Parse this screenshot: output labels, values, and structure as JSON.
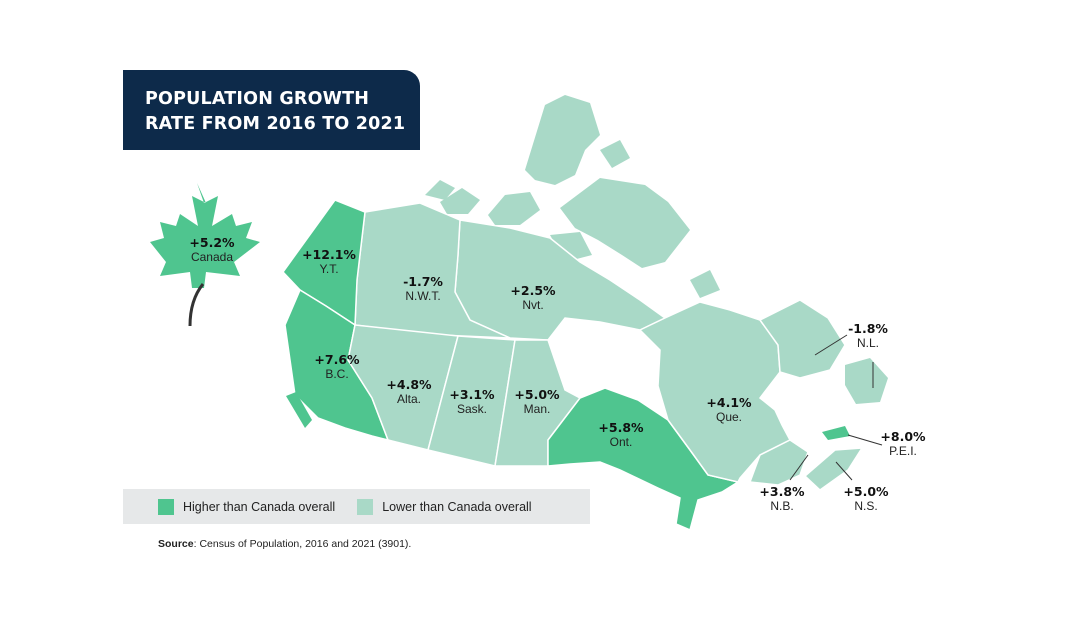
{
  "title": {
    "line1": "POPULATION GROWTH",
    "line2": "RATE FROM 2016 TO 2021"
  },
  "colors": {
    "higher": "#4fc58f",
    "lower": "#a9d9c7",
    "title_bg": "#0d2a4a",
    "legend_bg": "#e6e8e9"
  },
  "canada": {
    "value": "+5.2%",
    "name": "Canada"
  },
  "regions": {
    "yt": {
      "value": "+12.1%",
      "abbr": "Y.T.",
      "category": "higher"
    },
    "nwt": {
      "value": "-1.7%",
      "abbr": "N.W.T.",
      "category": "lower"
    },
    "nvt": {
      "value": "+2.5%",
      "abbr": "Nvt.",
      "category": "lower"
    },
    "bc": {
      "value": "+7.6%",
      "abbr": "B.C.",
      "category": "higher"
    },
    "alta": {
      "value": "+4.8%",
      "abbr": "Alta.",
      "category": "lower"
    },
    "sask": {
      "value": "+3.1%",
      "abbr": "Sask.",
      "category": "lower"
    },
    "man": {
      "value": "+5.0%",
      "abbr": "Man.",
      "category": "lower"
    },
    "ont": {
      "value": "+5.8%",
      "abbr": "Ont.",
      "category": "higher"
    },
    "que": {
      "value": "+4.1%",
      "abbr": "Que.",
      "category": "lower"
    },
    "nl": {
      "value": "-1.8%",
      "abbr": "N.L.",
      "category": "lower"
    },
    "pei": {
      "value": "+8.0%",
      "abbr": "P.E.I.",
      "category": "higher"
    },
    "nb": {
      "value": "+3.8%",
      "abbr": "N.B.",
      "category": "lower"
    },
    "ns": {
      "value": "+5.0%",
      "abbr": "N.S.",
      "category": "lower"
    }
  },
  "legend": {
    "higher_label": "Higher than Canada overall",
    "lower_label": "Lower than Canada overall"
  },
  "source": {
    "label": "Source",
    "text": ": Census of Population, 2016 and 2021 (3901)."
  }
}
